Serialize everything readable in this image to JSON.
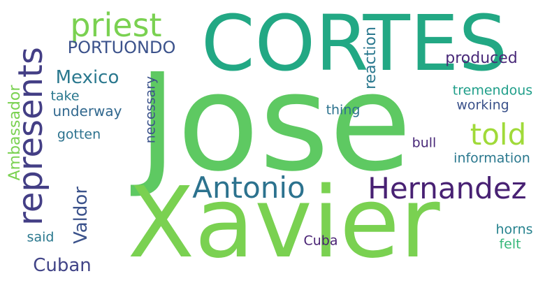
{
  "words": [
    {
      "key": "jose",
      "text": "Jose",
      "color": "#5ec962"
    },
    {
      "key": "xavier",
      "text": "Xavier",
      "color": "#7ad151"
    },
    {
      "key": "cortes",
      "text": "CORTES",
      "color": "#22a884"
    },
    {
      "key": "hernandez",
      "text": "Hernandez",
      "color": "#482173"
    },
    {
      "key": "antonio",
      "text": "Antonio",
      "color": "#2c728e"
    },
    {
      "key": "represents",
      "text": "represents",
      "color": "#433e85"
    },
    {
      "key": "priest",
      "text": "priest",
      "color": "#7ad151"
    },
    {
      "key": "told",
      "text": "told",
      "color": "#a0da39"
    },
    {
      "key": "portuondo",
      "text": "PORTUONDO",
      "color": "#3b528b"
    },
    {
      "key": "mexico",
      "text": "Mexico",
      "color": "#2a788e"
    },
    {
      "key": "ambassador",
      "text": "Ambassador",
      "color": "#7ad151"
    },
    {
      "key": "valdor",
      "text": "Valdor",
      "color": "#3b528b"
    },
    {
      "key": "cuban",
      "text": "Cuban",
      "color": "#414487"
    },
    {
      "key": "reaction",
      "text": "reaction",
      "color": "#2a788e"
    },
    {
      "key": "produced",
      "text": "produced",
      "color": "#482878"
    },
    {
      "key": "tremendous",
      "text": "tremendous",
      "color": "#1f9e89"
    },
    {
      "key": "working",
      "text": "working",
      "color": "#3b528b"
    },
    {
      "key": "thing",
      "text": "thing",
      "color": "#2c728e"
    },
    {
      "key": "take",
      "text": "take",
      "color": "#2a788e"
    },
    {
      "key": "underway",
      "text": "underway",
      "color": "#31688e"
    },
    {
      "key": "gotten",
      "text": "gotten",
      "color": "#2c728e"
    },
    {
      "key": "necessary",
      "text": "necessary",
      "color": "#3b528b"
    },
    {
      "key": "bull",
      "text": "bull",
      "color": "#482878"
    },
    {
      "key": "information",
      "text": "information",
      "color": "#2a788e"
    },
    {
      "key": "said",
      "text": "said",
      "color": "#2a788e"
    },
    {
      "key": "cuba",
      "text": "Cuba",
      "color": "#482173"
    },
    {
      "key": "horns",
      "text": "horns",
      "color": "#26828e"
    },
    {
      "key": "felt",
      "text": "felt",
      "color": "#35b779"
    }
  ]
}
